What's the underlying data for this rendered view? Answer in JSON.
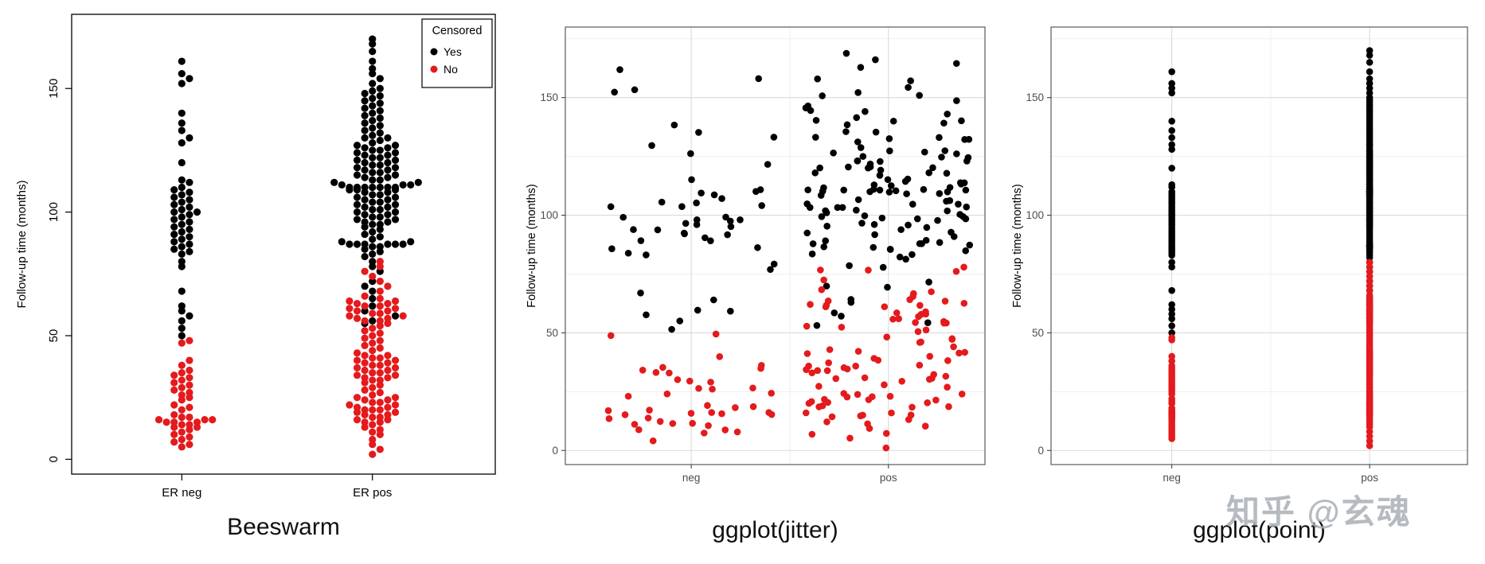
{
  "watermark": {
    "text": "知乎 @玄魂"
  },
  "chart_data": {
    "type": "scatter",
    "ylabel": "Follow-up time (months)",
    "yticks": [
      0,
      50,
      100,
      150
    ],
    "ylim": [
      -6,
      180
    ],
    "colors": {
      "censored_yes": "#000000",
      "censored_no": "#e41a1c"
    },
    "legend": {
      "title": "Censored",
      "entries": [
        {
          "label": "Yes",
          "key": "censored_yes"
        },
        {
          "label": "No",
          "key": "censored_no"
        }
      ]
    },
    "groups": [
      {
        "id": "neg",
        "censored_yes": [
          161,
          156,
          154,
          152,
          140,
          136,
          133,
          130,
          128,
          120,
          113,
          112,
          110,
          109,
          108,
          107,
          106,
          105,
          104,
          103,
          102,
          101,
          100,
          100,
          99,
          98,
          97,
          96,
          95,
          94,
          93,
          92,
          91,
          90,
          89,
          88,
          87,
          86,
          85,
          84,
          83,
          80,
          78,
          68,
          62,
          60,
          58,
          56,
          53,
          50
        ],
        "censored_no": [
          48,
          47,
          40,
          38,
          36,
          35,
          34,
          33,
          32,
          31,
          30,
          29,
          28,
          27,
          26,
          25,
          24,
          22,
          21,
          20,
          18,
          17,
          17,
          16,
          16,
          16,
          15,
          15,
          15,
          14,
          14,
          13,
          13,
          12,
          11,
          10,
          9,
          8,
          7,
          6,
          5
        ]
      },
      {
        "id": "pos",
        "censored_yes": [
          170,
          168,
          165,
          161,
          158,
          156,
          154,
          152,
          150,
          149,
          148,
          147,
          146,
          145,
          144,
          143,
          142,
          141,
          140,
          139,
          138,
          137,
          136,
          135,
          134,
          133,
          132,
          131,
          130,
          130,
          129,
          128,
          127,
          127,
          126,
          126,
          125,
          125,
          124,
          124,
          123,
          123,
          122,
          122,
          121,
          121,
          120,
          120,
          119,
          119,
          118,
          118,
          117,
          117,
          116,
          116,
          115,
          115,
          114,
          114,
          113,
          113,
          112,
          112,
          111,
          111,
          111,
          110,
          110,
          110,
          110,
          110,
          110,
          110,
          109,
          109,
          109,
          108,
          108,
          107,
          107,
          106,
          106,
          105,
          105,
          104,
          104,
          103,
          103,
          102,
          102,
          101,
          101,
          100,
          100,
          99,
          99,
          98,
          98,
          97,
          97,
          96,
          96,
          95,
          95,
          94,
          93,
          92,
          91,
          90,
          89,
          88,
          88,
          87,
          87,
          87,
          87,
          87,
          87,
          86,
          86,
          85,
          84,
          83,
          82,
          80,
          78,
          76,
          72,
          70,
          68,
          65,
          62,
          60,
          58,
          56,
          55
        ],
        "censored_no": [
          80,
          78,
          76,
          74,
          72,
          70,
          68,
          66,
          65,
          64,
          64,
          63,
          63,
          62,
          62,
          61,
          61,
          60,
          60,
          59,
          59,
          58,
          58,
          57,
          57,
          56,
          56,
          55,
          54,
          53,
          52,
          51,
          50,
          49,
          48,
          47,
          46,
          45,
          44,
          43,
          42,
          42,
          41,
          41,
          40,
          40,
          39,
          39,
          38,
          38,
          37,
          37,
          36,
          36,
          35,
          35,
          34,
          34,
          33,
          33,
          32,
          32,
          31,
          30,
          29,
          28,
          27,
          26,
          25,
          25,
          24,
          24,
          23,
          23,
          22,
          22,
          21,
          21,
          20,
          20,
          20,
          19,
          19,
          18,
          18,
          17,
          17,
          16,
          16,
          15,
          15,
          14,
          13,
          12,
          11,
          10,
          8,
          6,
          4,
          2
        ]
      }
    ],
    "panels": [
      {
        "id": "beeswarm",
        "title": "Beeswarm",
        "style": "base",
        "x_tick_labels": [
          "ER neg",
          "ER pos"
        ],
        "show_legend": true
      },
      {
        "id": "jitter",
        "title": "ggplot(jitter)",
        "style": "ggplot",
        "x_tick_labels": [
          "neg",
          "pos"
        ],
        "show_legend": false
      },
      {
        "id": "point",
        "title": "ggplot(point)",
        "style": "ggplot",
        "x_tick_labels": [
          "neg",
          "pos"
        ],
        "show_legend": false
      }
    ]
  }
}
